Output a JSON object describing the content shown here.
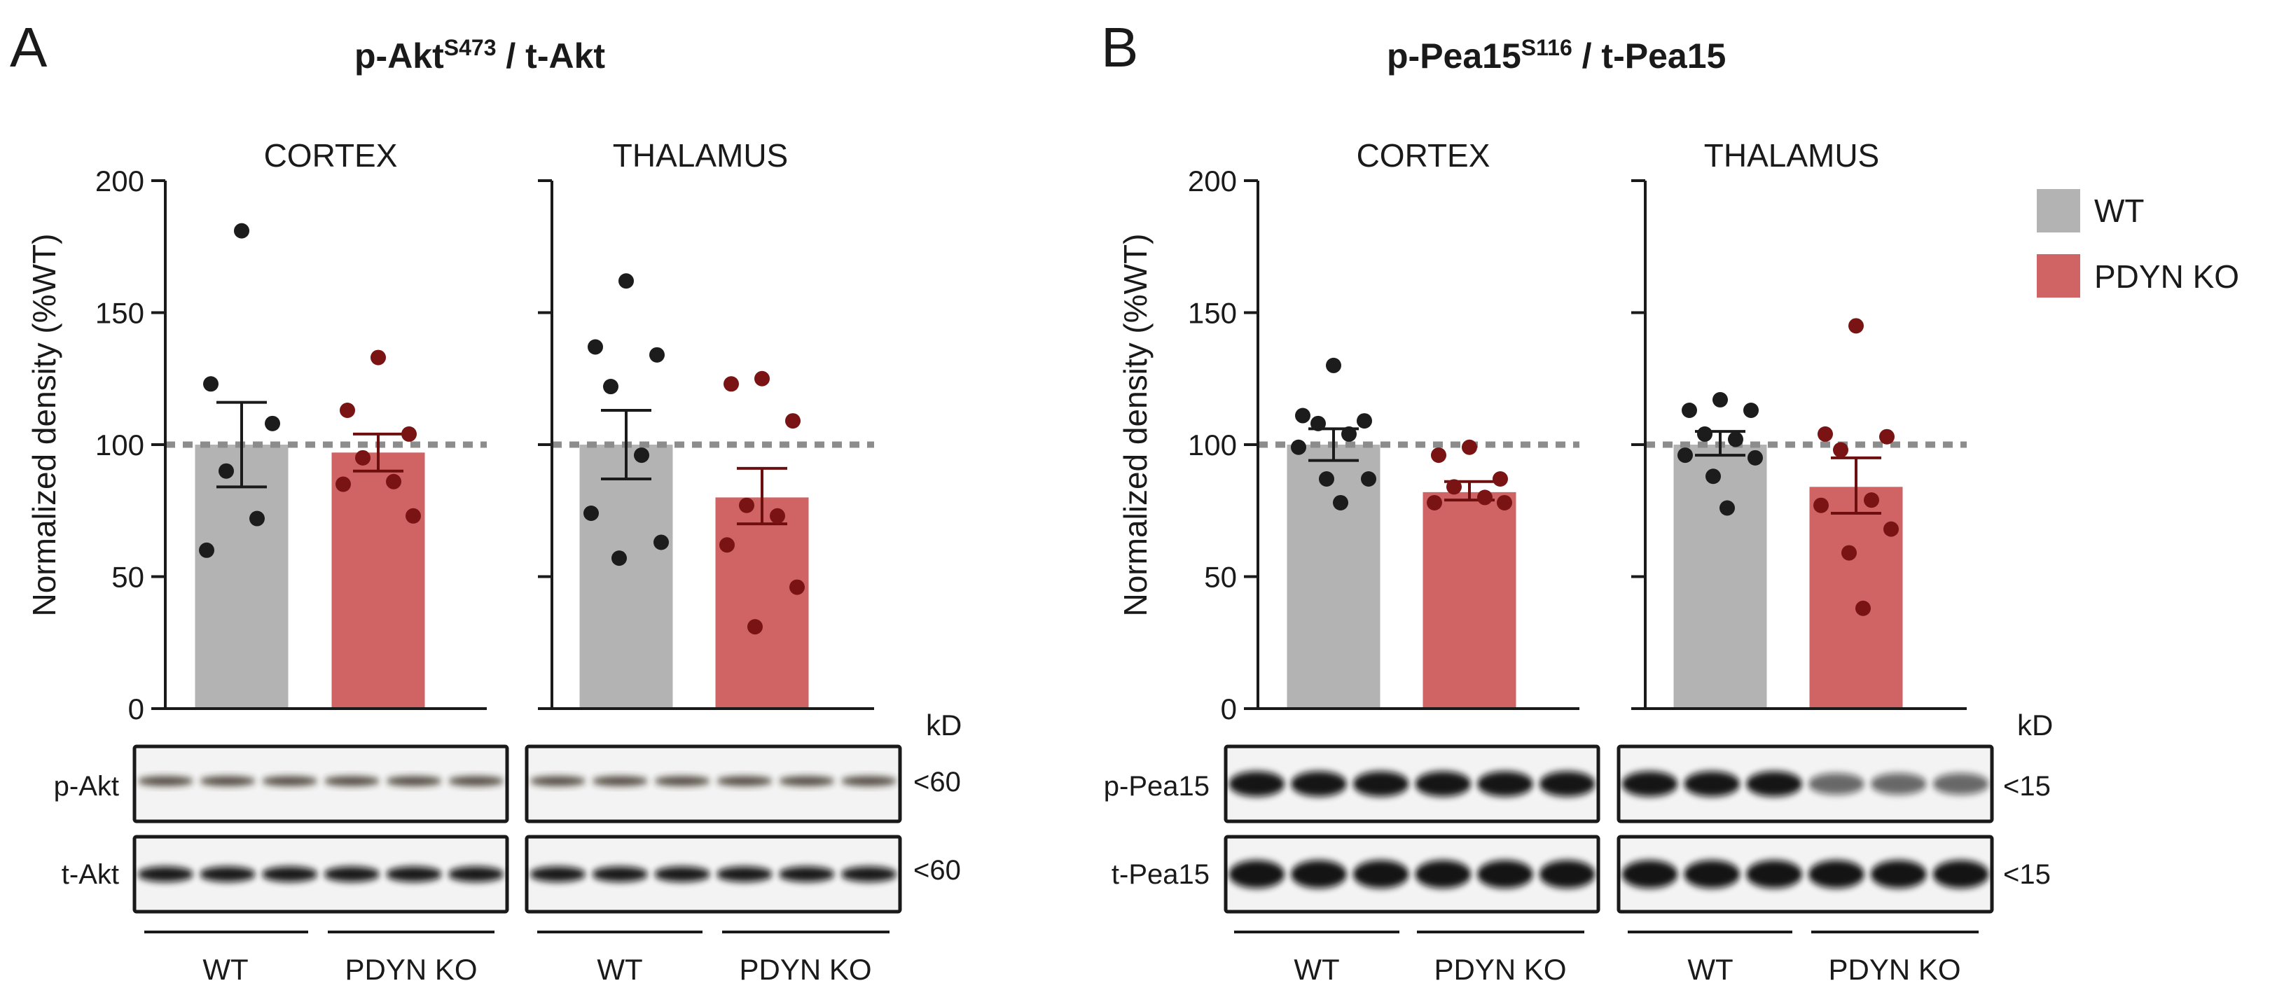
{
  "colors": {
    "wt_bar": "#b3b3b3",
    "ko_bar": "#d06363",
    "wt_dot": "#1c1c1c",
    "ko_dot": "#7a1414",
    "reference_line": "#8c8c8c"
  },
  "legend": {
    "wt_label": "WT",
    "ko_label": "PDYN KO"
  },
  "kd_label": "kD",
  "panels": [
    {
      "letter": "A",
      "title_main": "p-Akt",
      "title_sup": "S473",
      "title_tail": " / t-Akt",
      "ylabel": "Normalized density (%WT)",
      "blot_rows": [
        {
          "label": "p-Akt",
          "kd": "<60",
          "style": "pakt"
        },
        {
          "label": "t-Akt",
          "kd": "<60",
          "style": "takt"
        }
      ],
      "group_labels": [
        "WT",
        "PDYN KO",
        "WT",
        "PDYN KO"
      ]
    },
    {
      "letter": "B",
      "title_main": "p-Pea15",
      "title_sup": "S116",
      "title_tail": " / t-Pea15",
      "ylabel": "Normalized density (%WT)",
      "blot_rows": [
        {
          "label": "p-Pea15",
          "kd": "<15",
          "style": "ppea"
        },
        {
          "label": "t-Pea15",
          "kd": "<15",
          "style": "tpea"
        }
      ],
      "group_labels": [
        "WT",
        "PDYN KO",
        "WT",
        "PDYN KO"
      ]
    }
  ],
  "chart_data": [
    {
      "type": "bar",
      "panel": "A",
      "title": "CORTEX",
      "categories": [
        "WT",
        "PDYN KO"
      ],
      "ylabel": "Normalized density (%WT)",
      "ylim": [
        0,
        200
      ],
      "yticks": [
        0,
        50,
        100,
        150,
        200
      ],
      "reference_line": 100,
      "series": [
        {
          "name": "WT",
          "mean": 100,
          "sem_low": 84,
          "sem_high": 116,
          "points": [
            181,
            123,
            108,
            90,
            72,
            60
          ]
        },
        {
          "name": "PDYN KO",
          "mean": 97,
          "sem_low": 90,
          "sem_high": 104,
          "points": [
            133,
            113,
            104,
            95,
            86,
            85,
            73
          ]
        }
      ]
    },
    {
      "type": "bar",
      "panel": "A",
      "title": "THALAMUS",
      "categories": [
        "WT",
        "PDYN KO"
      ],
      "ylim": [
        0,
        200
      ],
      "yticks": [
        0,
        50,
        100,
        150,
        200
      ],
      "reference_line": 100,
      "series": [
        {
          "name": "WT",
          "mean": 100,
          "sem_low": 87,
          "sem_high": 113,
          "points": [
            162,
            137,
            134,
            122,
            96,
            74,
            63,
            57
          ]
        },
        {
          "name": "PDYN KO",
          "mean": 80,
          "sem_low": 70,
          "sem_high": 91,
          "points": [
            125,
            123,
            109,
            77,
            73,
            62,
            46,
            31
          ]
        }
      ]
    },
    {
      "type": "bar",
      "panel": "B",
      "title": "CORTEX",
      "categories": [
        "WT",
        "PDYN KO"
      ],
      "ylabel": "Normalized density (%WT)",
      "ylim": [
        0,
        200
      ],
      "yticks": [
        0,
        50,
        100,
        150,
        200
      ],
      "reference_line": 100,
      "series": [
        {
          "name": "WT",
          "mean": 100,
          "sem_low": 94,
          "sem_high": 106,
          "points": [
            130,
            111,
            109,
            108,
            104,
            99,
            87,
            87,
            78
          ]
        },
        {
          "name": "PDYN KO",
          "mean": 82,
          "sem_low": 79,
          "sem_high": 86,
          "points": [
            99,
            96,
            87,
            84,
            80,
            78,
            78
          ]
        }
      ]
    },
    {
      "type": "bar",
      "panel": "B",
      "title": "THALAMUS",
      "categories": [
        "WT",
        "PDYN KO"
      ],
      "ylim": [
        0,
        200
      ],
      "yticks": [
        0,
        50,
        100,
        150,
        200
      ],
      "reference_line": 100,
      "series": [
        {
          "name": "WT",
          "mean": 100,
          "sem_low": 96,
          "sem_high": 105,
          "points": [
            117,
            113,
            113,
            104,
            102,
            96,
            95,
            88,
            76
          ]
        },
        {
          "name": "PDYN KO",
          "mean": 84,
          "sem_low": 74,
          "sem_high": 95,
          "points": [
            145,
            104,
            103,
            98,
            79,
            77,
            68,
            59,
            38
          ]
        }
      ]
    }
  ]
}
